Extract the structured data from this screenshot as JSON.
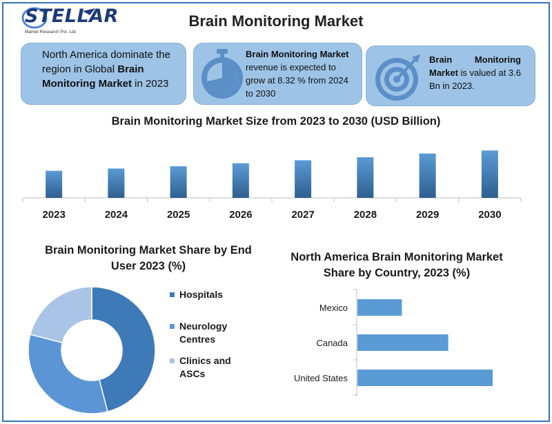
{
  "logo": {
    "name": "STELLAR",
    "subtitle": "Market Research Pvt. Ltd."
  },
  "title": "Brain Monitoring Market",
  "cards": [
    {
      "prefix": "North America dominate the region in Global ",
      "bold": "Brain Monitoring Market",
      "suffix": " in 2023",
      "icon": "none"
    },
    {
      "prefix": "",
      "bold": "Brain Monitoring Market",
      "suffix": " revenue is expected to grow at 8.32 % from 2024 to 2030",
      "icon": "stopwatch-icon"
    },
    {
      "prefix": "",
      "bold": "Brain Monitoring Market",
      "suffix": " is valued at 3.6 Bn in 2023.",
      "icon": "target-icon"
    }
  ],
  "colors": {
    "bar_top": "#5b9bd5",
    "bar_bottom": "#2e5f8f",
    "card_bg": "#9dc3e6",
    "frame": "#3a6fb5",
    "hospitals": "#3f7ab8",
    "neurology": "#5b95d6",
    "clinics": "#a9c4e6",
    "hbar": "#5b9bd5"
  },
  "chart_data": [
    {
      "type": "bar",
      "title": "Brain Monitoring Market Size from 2023 to 2030 (USD Billion)",
      "categories": [
        "2023",
        "2024",
        "2025",
        "2026",
        "2027",
        "2028",
        "2029",
        "2030"
      ],
      "values": [
        3.6,
        3.9,
        4.2,
        4.6,
        5.0,
        5.4,
        5.9,
        6.3
      ],
      "xlabel": "",
      "ylabel": "",
      "ylim": [
        0,
        6.6
      ],
      "grid": false
    },
    {
      "type": "pie",
      "title": "Brain Monitoring Market Share by End User 2023 (%)",
      "categories": [
        "Hospitals",
        "Neurology Centres",
        "Clinics and ASCs"
      ],
      "values": [
        46,
        33,
        21
      ],
      "donut": true,
      "legend": "right"
    },
    {
      "type": "bar",
      "orientation": "horizontal",
      "title": "North America Brain Monitoring Market  Share by Country, 2023 (%)",
      "categories": [
        "United States",
        "Canada",
        "Mexico"
      ],
      "values": [
        70,
        47,
        23
      ],
      "xlim": [
        0,
        100
      ],
      "grid": false
    }
  ]
}
